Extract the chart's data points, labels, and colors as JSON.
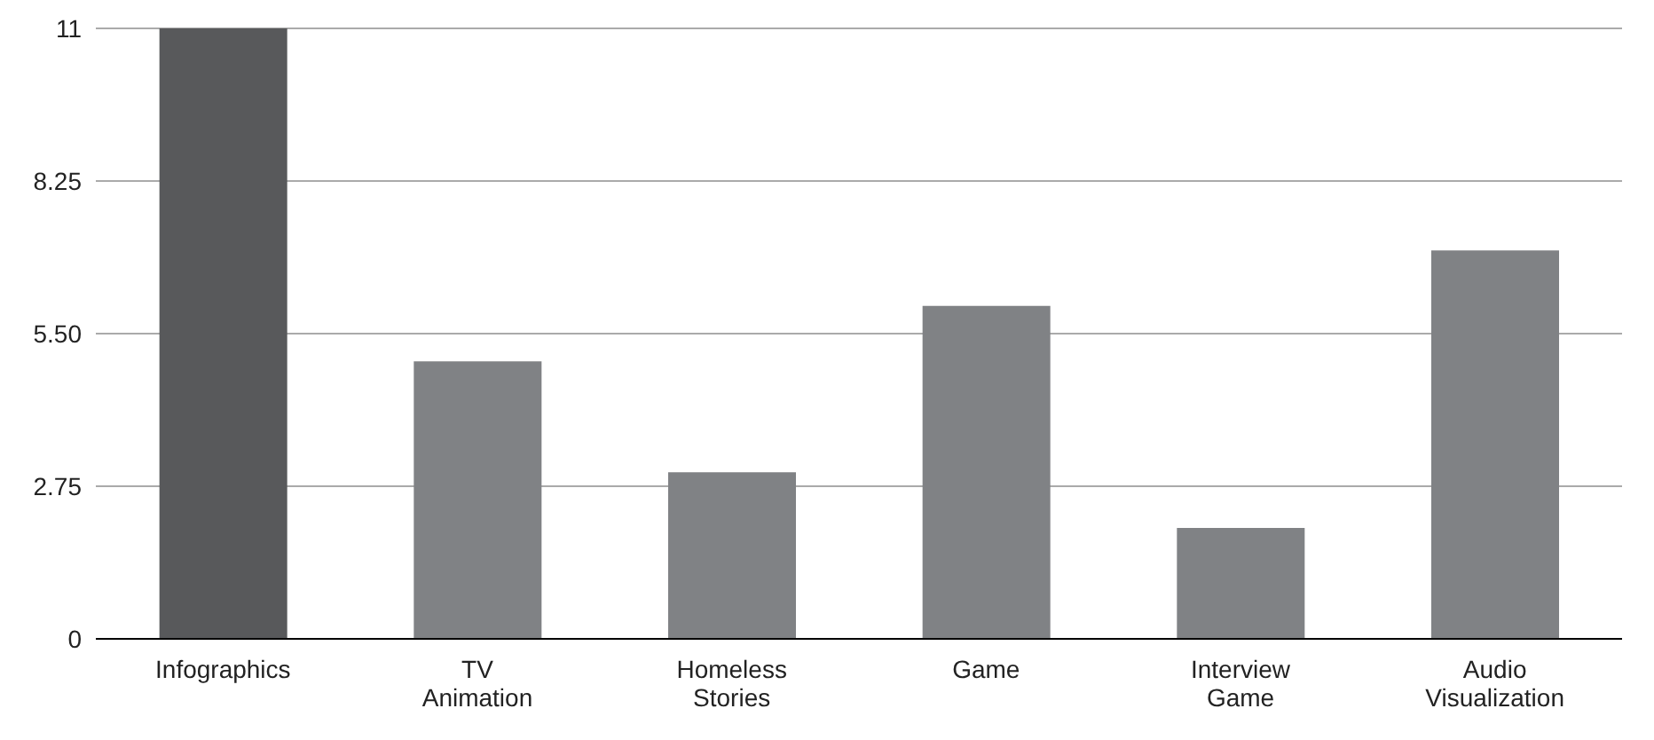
{
  "chart_data": {
    "type": "bar",
    "categories": [
      "Infographics",
      "TV Animation",
      "Homeless Stories",
      "Game",
      "Interview Game",
      "Audio Visualization"
    ],
    "values": [
      11,
      5,
      3,
      6,
      2,
      7
    ],
    "colors": [
      "#58595b",
      "#808285",
      "#808285",
      "#808285",
      "#808285",
      "#808285"
    ],
    "ylim": [
      0,
      11
    ],
    "yticks": [
      0,
      2.75,
      {
        "value": 5.5,
        "label": "5.50"
      },
      8.25,
      11
    ],
    "grid": "y"
  }
}
